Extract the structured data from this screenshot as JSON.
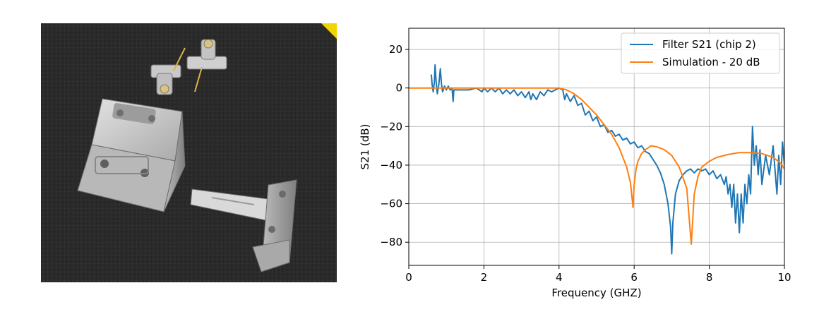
{
  "chart_data": {
    "type": "line",
    "title": "",
    "xlabel": "Frequency (GHZ)",
    "ylabel": "S21 (dB)",
    "xlim": [
      0,
      10
    ],
    "ylim": [
      -92,
      31
    ],
    "xticks": [
      0,
      2,
      4,
      6,
      8,
      10
    ],
    "yticks": [
      20,
      0,
      -20,
      -40,
      -60,
      -80
    ],
    "grid": true,
    "legend_position": "top-right",
    "series": [
      {
        "name": "Filter S21 (chip 2)",
        "color": "#1f77b4",
        "points": [
          [
            0.6,
            7
          ],
          [
            0.62,
            2
          ],
          [
            0.65,
            -2
          ],
          [
            0.68,
            3
          ],
          [
            0.7,
            12
          ],
          [
            0.73,
            3
          ],
          [
            0.76,
            -3
          ],
          [
            0.8,
            2
          ],
          [
            0.84,
            10
          ],
          [
            0.87,
            2
          ],
          [
            0.9,
            -2
          ],
          [
            0.95,
            1
          ],
          [
            1.0,
            -1
          ],
          [
            1.05,
            1
          ],
          [
            1.1,
            -1
          ],
          [
            1.15,
            0
          ],
          [
            1.18,
            -7
          ],
          [
            1.2,
            -1
          ],
          [
            1.3,
            -1
          ],
          [
            1.4,
            -1
          ],
          [
            1.6,
            -1
          ],
          [
            1.8,
            0
          ],
          [
            1.95,
            -2
          ],
          [
            2.0,
            0
          ],
          [
            2.1,
            -2
          ],
          [
            2.2,
            0
          ],
          [
            2.3,
            -2
          ],
          [
            2.4,
            0
          ],
          [
            2.5,
            -3
          ],
          [
            2.6,
            -1
          ],
          [
            2.7,
            -3
          ],
          [
            2.8,
            -1
          ],
          [
            2.9,
            -4
          ],
          [
            3.0,
            -2
          ],
          [
            3.1,
            -5
          ],
          [
            3.2,
            -2
          ],
          [
            3.25,
            -6
          ],
          [
            3.3,
            -3
          ],
          [
            3.4,
            -6
          ],
          [
            3.5,
            -2
          ],
          [
            3.6,
            -4
          ],
          [
            3.7,
            -1
          ],
          [
            3.8,
            -2
          ],
          [
            3.9,
            -1
          ],
          [
            4.0,
            0
          ],
          [
            4.1,
            -1
          ],
          [
            4.15,
            -6
          ],
          [
            4.2,
            -3
          ],
          [
            4.3,
            -7
          ],
          [
            4.4,
            -4
          ],
          [
            4.5,
            -9
          ],
          [
            4.6,
            -8
          ],
          [
            4.7,
            -14
          ],
          [
            4.8,
            -12
          ],
          [
            4.9,
            -17
          ],
          [
            5.0,
            -15
          ],
          [
            5.1,
            -20
          ],
          [
            5.2,
            -19
          ],
          [
            5.3,
            -23
          ],
          [
            5.4,
            -22
          ],
          [
            5.5,
            -25
          ],
          [
            5.6,
            -24
          ],
          [
            5.7,
            -27
          ],
          [
            5.8,
            -26
          ],
          [
            5.9,
            -29
          ],
          [
            6.0,
            -28
          ],
          [
            6.1,
            -31
          ],
          [
            6.2,
            -30
          ],
          [
            6.3,
            -33
          ],
          [
            6.4,
            -34
          ],
          [
            6.5,
            -37
          ],
          [
            6.6,
            -40
          ],
          [
            6.7,
            -44
          ],
          [
            6.8,
            -50
          ],
          [
            6.9,
            -60
          ],
          [
            6.97,
            -72
          ],
          [
            7.0,
            -86
          ],
          [
            7.03,
            -70
          ],
          [
            7.1,
            -55
          ],
          [
            7.2,
            -48
          ],
          [
            7.3,
            -45
          ],
          [
            7.4,
            -43
          ],
          [
            7.5,
            -42
          ],
          [
            7.6,
            -44
          ],
          [
            7.7,
            -42
          ],
          [
            7.8,
            -43
          ],
          [
            7.9,
            -42
          ],
          [
            8.0,
            -45
          ],
          [
            8.1,
            -43
          ],
          [
            8.2,
            -47
          ],
          [
            8.3,
            -45
          ],
          [
            8.4,
            -50
          ],
          [
            8.45,
            -46
          ],
          [
            8.5,
            -55
          ],
          [
            8.55,
            -50
          ],
          [
            8.6,
            -62
          ],
          [
            8.65,
            -50
          ],
          [
            8.7,
            -70
          ],
          [
            8.75,
            -55
          ],
          [
            8.8,
            -75
          ],
          [
            8.85,
            -55
          ],
          [
            8.9,
            -70
          ],
          [
            8.95,
            -50
          ],
          [
            9.0,
            -60
          ],
          [
            9.05,
            -45
          ],
          [
            9.1,
            -55
          ],
          [
            9.15,
            -20
          ],
          [
            9.2,
            -40
          ],
          [
            9.25,
            -30
          ],
          [
            9.3,
            -45
          ],
          [
            9.35,
            -32
          ],
          [
            9.4,
            -50
          ],
          [
            9.5,
            -35
          ],
          [
            9.6,
            -45
          ],
          [
            9.7,
            -30
          ],
          [
            9.8,
            -55
          ],
          [
            9.85,
            -35
          ],
          [
            9.9,
            -50
          ],
          [
            9.95,
            -28
          ],
          [
            10.0,
            -40
          ]
        ]
      },
      {
        "name": "Simulation - 20 dB",
        "color": "#ff7f0e",
        "points": [
          [
            0.0,
            0
          ],
          [
            1.0,
            0
          ],
          [
            2.0,
            0
          ],
          [
            3.0,
            0
          ],
          [
            4.0,
            0
          ],
          [
            4.2,
            -1
          ],
          [
            4.4,
            -3
          ],
          [
            4.6,
            -6
          ],
          [
            4.8,
            -10
          ],
          [
            5.0,
            -14
          ],
          [
            5.2,
            -19
          ],
          [
            5.4,
            -24
          ],
          [
            5.6,
            -31
          ],
          [
            5.8,
            -41
          ],
          [
            5.9,
            -49
          ],
          [
            5.97,
            -62
          ],
          [
            6.0,
            -50
          ],
          [
            6.05,
            -42
          ],
          [
            6.1,
            -38
          ],
          [
            6.2,
            -34
          ],
          [
            6.3,
            -32
          ],
          [
            6.45,
            -30
          ],
          [
            6.6,
            -30.5
          ],
          [
            6.8,
            -32
          ],
          [
            7.0,
            -35
          ],
          [
            7.2,
            -41
          ],
          [
            7.4,
            -52
          ],
          [
            7.52,
            -81
          ],
          [
            7.6,
            -55
          ],
          [
            7.7,
            -46
          ],
          [
            7.8,
            -41
          ],
          [
            8.0,
            -38
          ],
          [
            8.2,
            -36
          ],
          [
            8.5,
            -34.5
          ],
          [
            8.8,
            -33.5
          ],
          [
            9.1,
            -33.5
          ],
          [
            9.4,
            -34
          ],
          [
            9.7,
            -36
          ],
          [
            9.9,
            -39
          ],
          [
            10.0,
            -42
          ]
        ]
      }
    ]
  }
}
